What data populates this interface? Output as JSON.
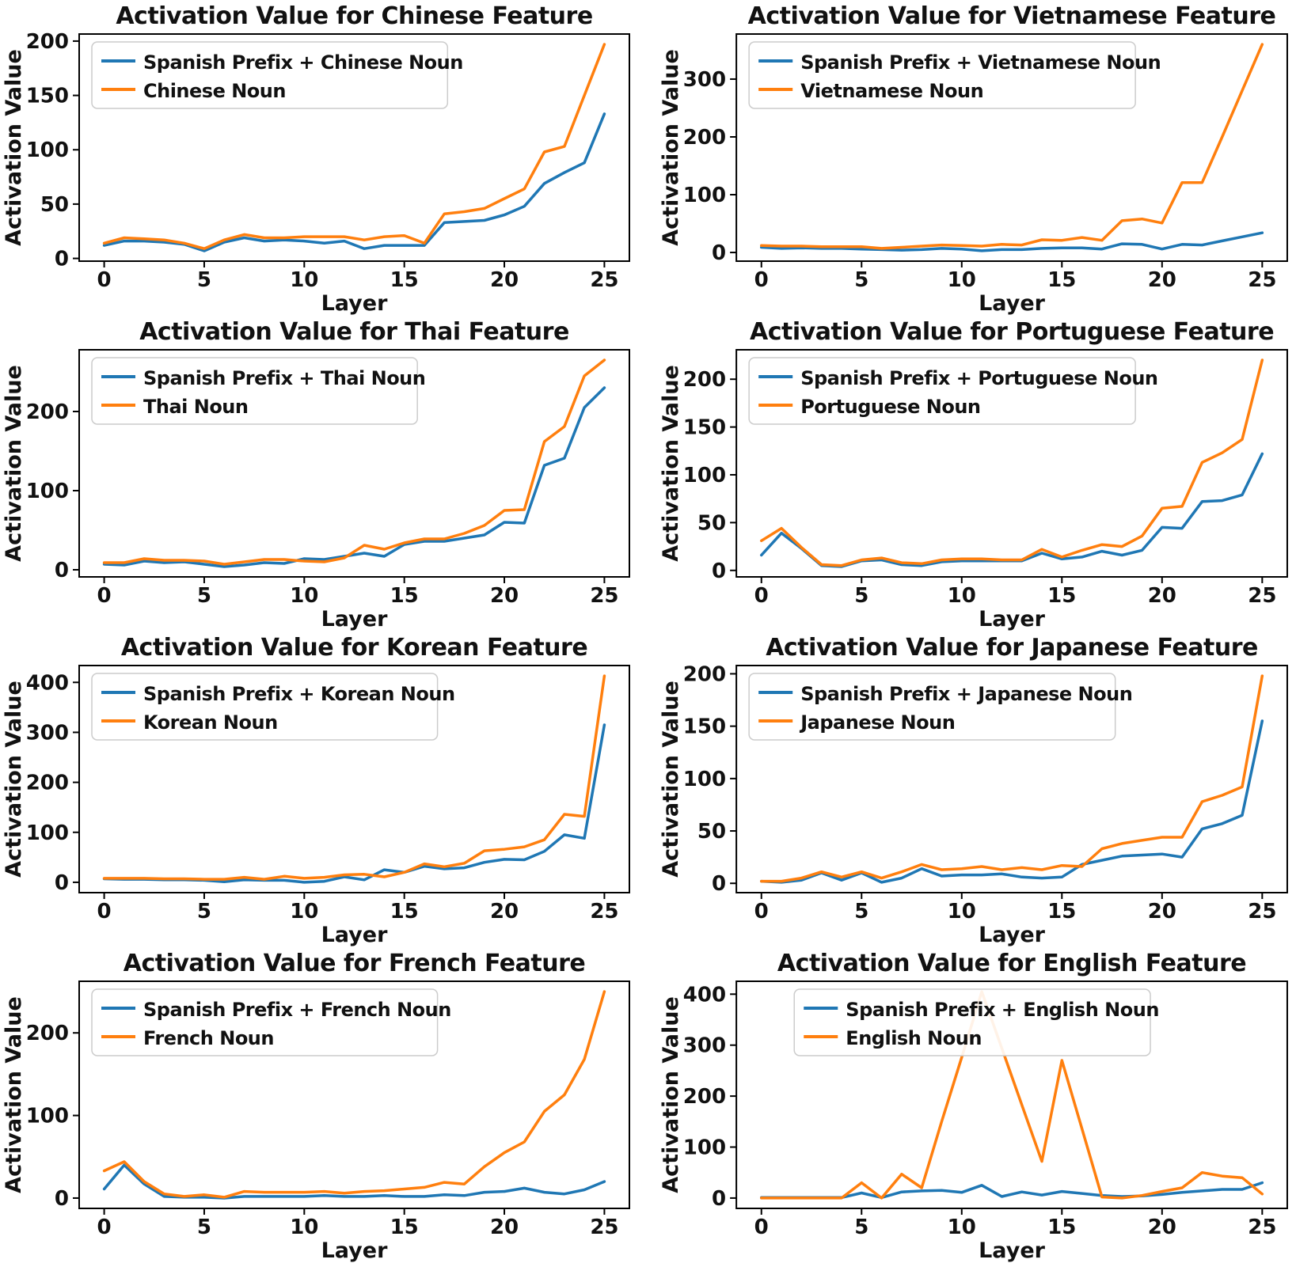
{
  "shared": {
    "xlabel": "Layer",
    "ylabel": "Activation Value",
    "x": [
      0,
      1,
      2,
      3,
      4,
      5,
      6,
      7,
      8,
      9,
      10,
      11,
      12,
      13,
      14,
      15,
      16,
      17,
      18,
      19,
      20,
      21,
      22,
      23,
      24,
      25
    ],
    "xlim": [
      -1.25,
      26.25
    ],
    "xticks": [
      0,
      5,
      10,
      15,
      20,
      25
    ],
    "grid": "off",
    "legend_location": "upper left",
    "colors": {
      "series_blue": "#1f77b4",
      "series_orange": "#ff7f0e",
      "spine": "#000000",
      "legend_edge": "#cccccc",
      "legend_fill": "#ffffff"
    }
  },
  "chart_data": [
    {
      "type": "line",
      "title": "Activation Value for Chinese Feature",
      "xlabel": "Layer",
      "ylabel": "Activation Value",
      "ylim": [
        -2.5,
        206.5
      ],
      "yticks": [
        0,
        50,
        100,
        150,
        200
      ],
      "legend_dx": 16,
      "series": [
        {
          "name": "Spanish Prefix + Chinese Noun",
          "color": "#1f77b4",
          "values": [
            12,
            16,
            16,
            15,
            13,
            7,
            15,
            19,
            16,
            17,
            16,
            14,
            16,
            9,
            12,
            12,
            12,
            33,
            34,
            35,
            40,
            48,
            69,
            79,
            88,
            133
          ]
        },
        {
          "name": "Chinese Noun",
          "color": "#ff7f0e",
          "values": [
            14,
            19,
            18,
            17,
            14,
            9,
            17,
            22,
            19,
            19,
            20,
            20,
            20,
            17,
            20,
            21,
            14,
            41,
            43,
            46,
            55,
            64,
            98,
            103,
            150,
            197
          ]
        }
      ]
    },
    {
      "type": "line",
      "title": "Activation Value for Vietnamese Feature",
      "xlabel": "Layer",
      "ylabel": "Activation Value",
      "ylim": [
        -15,
        378
      ],
      "yticks": [
        0,
        100,
        200,
        300
      ],
      "legend_dx": 16,
      "series": [
        {
          "name": "Spanish Prefix + Vietnamese Noun",
          "color": "#1f77b4",
          "values": [
            9,
            7,
            8,
            7,
            7,
            6,
            5,
            4,
            5,
            7,
            6,
            3,
            5,
            5,
            7,
            8,
            8,
            6,
            15,
            14,
            6,
            14,
            13,
            20,
            27,
            34
          ]
        },
        {
          "name": "Vietnamese Noun",
          "color": "#ff7f0e",
          "values": [
            12,
            11,
            11,
            10,
            10,
            10,
            7,
            9,
            11,
            13,
            12,
            11,
            14,
            13,
            22,
            21,
            26,
            21,
            55,
            58,
            51,
            121,
            121,
            200,
            280,
            360
          ]
        }
      ]
    },
    {
      "type": "line",
      "title": "Activation Value for Thai Feature",
      "xlabel": "Layer",
      "ylabel": "Activation Value",
      "ylim": [
        -9,
        278
      ],
      "yticks": [
        0,
        100,
        200
      ],
      "legend_dx": 16,
      "series": [
        {
          "name": "Spanish Prefix + Thai Noun",
          "color": "#1f77b4",
          "values": [
            7,
            6,
            11,
            9,
            10,
            7,
            4,
            6,
            9,
            8,
            14,
            13,
            17,
            21,
            17,
            32,
            36,
            36,
            40,
            44,
            60,
            59,
            132,
            141,
            205,
            230
          ]
        },
        {
          "name": "Thai Noun",
          "color": "#ff7f0e",
          "values": [
            9,
            9,
            14,
            12,
            12,
            11,
            7,
            10,
            13,
            13,
            11,
            10,
            15,
            31,
            26,
            34,
            39,
            39,
            46,
            56,
            75,
            76,
            162,
            181,
            245,
            265
          ]
        }
      ]
    },
    {
      "type": "line",
      "title": "Activation Value for Portuguese Feature",
      "xlabel": "Layer",
      "ylabel": "Activation Value",
      "ylim": [
        -6.8,
        230.8
      ],
      "yticks": [
        0,
        50,
        100,
        150,
        200
      ],
      "legend_dx": 16,
      "series": [
        {
          "name": "Spanish Prefix + Portuguese Noun",
          "color": "#1f77b4",
          "values": [
            16,
            39,
            23,
            5,
            4,
            10,
            11,
            6,
            5,
            9,
            10,
            10,
            10,
            10,
            18,
            12,
            14,
            20,
            16,
            21,
            45,
            44,
            72,
            73,
            79,
            122
          ]
        },
        {
          "name": "Portuguese Noun",
          "color": "#ff7f0e",
          "values": [
            31,
            44,
            24,
            6,
            5,
            11,
            13,
            8,
            7,
            11,
            12,
            12,
            11,
            11,
            22,
            14,
            21,
            27,
            25,
            36,
            65,
            67,
            113,
            123,
            137,
            220
          ]
        }
      ]
    },
    {
      "type": "line",
      "title": "Activation Value for Korean Feature",
      "xlabel": "Layer",
      "ylabel": "Activation Value",
      "ylim": [
        -20.7,
        433.7
      ],
      "yticks": [
        0,
        100,
        200,
        300,
        400
      ],
      "legend_dx": 16,
      "series": [
        {
          "name": "Spanish Prefix + Korean Noun",
          "color": "#1f77b4",
          "values": [
            7,
            6,
            6,
            5,
            5,
            4,
            1,
            5,
            4,
            4,
            0,
            2,
            11,
            5,
            25,
            20,
            32,
            27,
            29,
            40,
            46,
            45,
            62,
            95,
            88,
            315
          ]
        },
        {
          "name": "Korean Noun",
          "color": "#ff7f0e",
          "values": [
            8,
            8,
            8,
            7,
            7,
            6,
            6,
            10,
            6,
            12,
            8,
            10,
            15,
            16,
            11,
            20,
            37,
            31,
            38,
            63,
            66,
            71,
            85,
            136,
            132,
            413
          ]
        }
      ]
    },
    {
      "type": "line",
      "title": "Activation Value for Japanese Feature",
      "xlabel": "Layer",
      "ylabel": "Activation Value",
      "ylim": [
        -8.9,
        207.9
      ],
      "yticks": [
        0,
        50,
        100,
        150,
        200
      ],
      "legend_dx": 16,
      "series": [
        {
          "name": "Spanish Prefix + Japanese Noun",
          "color": "#1f77b4",
          "values": [
            2,
            1,
            3,
            10,
            3,
            10,
            1,
            5,
            14,
            7,
            8,
            8,
            9,
            6,
            5,
            6,
            18,
            22,
            26,
            27,
            28,
            25,
            52,
            57,
            65,
            155
          ]
        },
        {
          "name": "Japanese Noun",
          "color": "#ff7f0e",
          "values": [
            2,
            2,
            5,
            11,
            6,
            11,
            5,
            11,
            18,
            13,
            14,
            16,
            13,
            15,
            13,
            17,
            16,
            33,
            38,
            41,
            44,
            44,
            78,
            84,
            92,
            198
          ]
        }
      ]
    },
    {
      "type": "line",
      "title": "Activation Value for French Feature",
      "xlabel": "Layer",
      "ylabel": "Activation Value",
      "ylim": [
        -12.5,
        262.5
      ],
      "yticks": [
        0,
        100,
        200
      ],
      "legend_dx": 16,
      "series": [
        {
          "name": "Spanish Prefix + French Noun",
          "color": "#1f77b4",
          "values": [
            11,
            40,
            17,
            2,
            1,
            1,
            0,
            2,
            2,
            2,
            2,
            3,
            2,
            2,
            3,
            2,
            2,
            4,
            3,
            7,
            8,
            12,
            7,
            5,
            10,
            20
          ]
        },
        {
          "name": "French Noun",
          "color": "#ff7f0e",
          "values": [
            33,
            44,
            20,
            5,
            2,
            4,
            1,
            8,
            7,
            7,
            7,
            8,
            6,
            8,
            9,
            11,
            13,
            19,
            17,
            38,
            55,
            68,
            105,
            125,
            168,
            250
          ]
        }
      ]
    },
    {
      "type": "line",
      "title": "Activation Value for English Feature",
      "xlabel": "Layer",
      "ylabel": "Activation Value",
      "ylim": [
        -20.3,
        425.3
      ],
      "yticks": [
        0,
        100,
        200,
        300,
        400
      ],
      "legend_dx": 73,
      "series": [
        {
          "name": "Spanish Prefix + English Noun",
          "color": "#1f77b4",
          "values": [
            1,
            1,
            1,
            1,
            1,
            10,
            1,
            12,
            14,
            15,
            11,
            25,
            3,
            12,
            6,
            13,
            9,
            5,
            3,
            4,
            7,
            11,
            14,
            17,
            17,
            30
          ]
        },
        {
          "name": "English Noun",
          "color": "#ff7f0e",
          "values": [
            0,
            0,
            0,
            0,
            0,
            30,
            0,
            47,
            20,
            150,
            276,
            405,
            294,
            183,
            72,
            270,
            136,
            2,
            0,
            5,
            13,
            20,
            50,
            43,
            40,
            8
          ]
        }
      ]
    }
  ]
}
